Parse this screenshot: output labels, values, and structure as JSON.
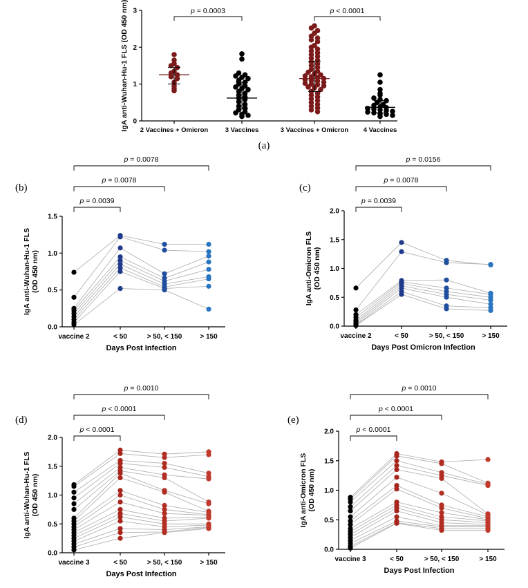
{
  "figure": {
    "panels": [
      "(a)",
      "(b)",
      "(c)",
      "(d)",
      "(e)"
    ]
  },
  "chart_data": [
    {
      "panel": "(a)",
      "type": "scatter",
      "ylabel": "IgA anti-Wuhan-Hu-1 FLS (OD 450 nm)",
      "ylim": [
        0,
        3
      ],
      "yticks": [
        0,
        1,
        2,
        3
      ],
      "categories": [
        "2 Vaccines + Omicron",
        "3 Vaccines",
        "3 Vaccines + Omicron",
        "4 Vaccines"
      ],
      "colors": [
        "#7a1a1a",
        "#000000",
        "#7a1a1a",
        "#000000"
      ],
      "medians": [
        1.25,
        0.62,
        1.15,
        0.37
      ],
      "iqr": [
        [
          1.0,
          1.45
        ],
        [
          0.32,
          1.05
        ],
        [
          0.8,
          1.62
        ],
        [
          0.22,
          0.55
        ]
      ],
      "values": [
        [
          1.8,
          1.65,
          1.55,
          1.5,
          1.45,
          1.35,
          1.3,
          1.25,
          1.2,
          1.15,
          1.05,
          0.95,
          0.88,
          0.82
        ],
        [
          1.82,
          1.68,
          1.3,
          1.25,
          1.22,
          1.18,
          1.15,
          1.1,
          1.05,
          1.0,
          0.95,
          0.92,
          0.88,
          0.85,
          0.8,
          0.75,
          0.7,
          0.65,
          0.62,
          0.58,
          0.52,
          0.45,
          0.4,
          0.35,
          0.3,
          0.25,
          0.22,
          0.18,
          0.15,
          0.12
        ],
        [
          2.58,
          2.52,
          2.45,
          2.38,
          2.3,
          2.25,
          2.2,
          2.15,
          2.05,
          2.0,
          1.95,
          1.9,
          1.85,
          1.8,
          1.75,
          1.7,
          1.65,
          1.6,
          1.55,
          1.5,
          1.45,
          1.4,
          1.35,
          1.32,
          1.28,
          1.25,
          1.22,
          1.2,
          1.18,
          1.15,
          1.12,
          1.1,
          1.08,
          1.05,
          1.02,
          1.0,
          0.98,
          0.95,
          0.92,
          0.9,
          0.85,
          0.8,
          0.75,
          0.7,
          0.65,
          0.6,
          0.55,
          0.5,
          0.45,
          0.4,
          0.35,
          0.3,
          0.25
        ],
        [
          1.25,
          1.05,
          0.85,
          0.75,
          0.7,
          0.62,
          0.58,
          0.55,
          0.5,
          0.45,
          0.42,
          0.38,
          0.36,
          0.34,
          0.32,
          0.3,
          0.28,
          0.26,
          0.24,
          0.22,
          0.2,
          0.18,
          0.15,
          0.12
        ]
      ],
      "comparisons": [
        {
          "from": 0,
          "to": 1,
          "p": "p = 0.0003"
        },
        {
          "from": 2,
          "to": 3,
          "p": "p < 0.0001"
        }
      ]
    },
    {
      "panel": "(b)",
      "type": "line",
      "ylabel": "IgA anti-Wuhan-Hu-1 FLS (OD 450 nm)",
      "xlabel": "Days Post Infection",
      "categories": [
        "vaccine 2",
        "< 50",
        "> 50, < 150",
        "> 150"
      ],
      "ylim": [
        0,
        1.5
      ],
      "yticks": [
        "0.0",
        "0.5",
        "1.0",
        "1.5"
      ],
      "colors": [
        "#000000",
        "#1f3a8a",
        "#1f4f9e",
        "#2a75c0"
      ],
      "series": [
        {
          "values": [
            0.74,
            1.24,
            1.12,
            1.12
          ]
        },
        {
          "values": [
            0.4,
            1.22,
            1.04,
            1.02
          ]
        },
        {
          "values": [
            0.25,
            1.07,
            0.72,
            0.96
          ]
        },
        {
          "values": [
            0.22,
            0.95,
            0.66,
            0.88
          ]
        },
        {
          "values": [
            0.18,
            0.9,
            0.62,
            0.78
          ]
        },
        {
          "values": [
            0.14,
            0.85,
            0.58,
            0.68
          ]
        },
        {
          "values": [
            0.1,
            0.8,
            0.54,
            0.65
          ]
        },
        {
          "values": [
            0.06,
            0.75,
            0.52,
            0.55
          ]
        },
        {
          "values": [
            0.03,
            0.52,
            0.5,
            0.24
          ]
        }
      ],
      "comparisons": [
        {
          "from": 0,
          "to": 1,
          "p": "p = 0.0039"
        },
        {
          "from": 0,
          "to": 2,
          "p": "p = 0.0078"
        },
        {
          "from": 0,
          "to": 3,
          "p": "p = 0.0078"
        }
      ]
    },
    {
      "panel": "(c)",
      "type": "line",
      "ylabel": "IgA anti-Omicron FLS (OD 450 nm)",
      "xlabel": "Days Post Omicron Infection",
      "categories": [
        "vaccine 2",
        "< 50",
        "> 50, < 150",
        "> 150"
      ],
      "ylim": [
        0,
        2
      ],
      "yticks": [
        "0.0",
        "0.5",
        "1.0",
        "1.5",
        "2.0"
      ],
      "colors": [
        "#000000",
        "#1f3a8a",
        "#1f4f9e",
        "#2a75c0"
      ],
      "series": [
        {
          "values": [
            0.66,
            1.45,
            1.14,
            1.06
          ]
        },
        {
          "values": [
            0.28,
            1.29,
            1.1,
            1.07
          ]
        },
        {
          "values": [
            0.2,
            0.79,
            0.8,
            0.57
          ]
        },
        {
          "values": [
            0.15,
            0.77,
            0.66,
            0.55
          ]
        },
        {
          "values": [
            0.1,
            0.74,
            0.6,
            0.5
          ]
        },
        {
          "values": [
            0.07,
            0.7,
            0.55,
            0.45
          ]
        },
        {
          "values": [
            0.04,
            0.66,
            0.5,
            0.38
          ]
        },
        {
          "values": [
            0.02,
            0.6,
            0.35,
            0.32
          ]
        },
        {
          "values": [
            0.01,
            0.55,
            0.3,
            0.27
          ]
        }
      ],
      "comparisons": [
        {
          "from": 0,
          "to": 1,
          "p": "p = 0.0039"
        },
        {
          "from": 0,
          "to": 2,
          "p": "p = 0.0078"
        },
        {
          "from": 0,
          "to": 3,
          "p": "p = 0.0156"
        }
      ]
    },
    {
      "panel": "(d)",
      "type": "line",
      "ylabel": "IgA anti-Wuhan-Hu-1 FLS (OD 450 nm)",
      "xlabel": "Days Post Infection",
      "categories": [
        "vaccine 3",
        "< 50",
        "> 50, < 150",
        "> 150"
      ],
      "ylim": [
        0,
        2
      ],
      "yticks": [
        "0.0",
        "0.5",
        "1.0",
        "1.5",
        "2.0"
      ],
      "colors": [
        "#000000",
        "#a8251c",
        "#b22d22",
        "#c0392b"
      ],
      "series": [
        {
          "values": [
            1.18,
            1.78,
            1.71,
            1.75
          ]
        },
        {
          "values": [
            1.15,
            1.72,
            1.65,
            1.7
          ]
        },
        {
          "values": [
            1.05,
            1.6,
            1.55,
            1.38
          ]
        },
        {
          "values": [
            0.95,
            1.55,
            1.48,
            1.32
          ]
        },
        {
          "values": [
            0.85,
            1.48,
            1.35,
            1.28
          ]
        },
        {
          "values": [
            0.75,
            1.42,
            1.3,
            0.88
          ]
        },
        {
          "values": [
            0.6,
            1.38,
            1.08,
            0.85
          ]
        },
        {
          "values": [
            0.55,
            1.3,
            1.05,
            0.72
          ]
        },
        {
          "values": [
            0.5,
            1.08,
            0.82,
            0.7
          ]
        },
        {
          "values": [
            0.45,
            1.0,
            0.75,
            0.66
          ]
        },
        {
          "values": [
            0.4,
            0.88,
            0.68,
            0.65
          ]
        },
        {
          "values": [
            0.35,
            0.75,
            0.6,
            0.62
          ]
        },
        {
          "values": [
            0.3,
            0.68,
            0.55,
            0.6
          ]
        },
        {
          "values": [
            0.25,
            0.62,
            0.5,
            0.5
          ]
        },
        {
          "values": [
            0.2,
            0.55,
            0.45,
            0.48
          ]
        },
        {
          "values": [
            0.15,
            0.42,
            0.4,
            0.45
          ]
        },
        {
          "values": [
            0.1,
            0.35,
            0.36,
            0.44
          ]
        },
        {
          "values": [
            0.05,
            0.25,
            0.35,
            0.42
          ]
        }
      ],
      "comparisons": [
        {
          "from": 0,
          "to": 1,
          "p": "p < 0.0001"
        },
        {
          "from": 0,
          "to": 2,
          "p": "p < 0.0001"
        },
        {
          "from": 0,
          "to": 3,
          "p": "p = 0.0010"
        }
      ]
    },
    {
      "panel": "(e)",
      "type": "line",
      "ylabel": "IgA anti-Omicron FLS (OD 450 nm)",
      "xlabel": "Days Post Infection",
      "categories": [
        "vaccine 3",
        "< 50",
        "> 50, < 150",
        "> 150"
      ],
      "ylim": [
        0,
        2
      ],
      "yticks": [
        "0.0",
        "0.5",
        "1.0",
        "1.5",
        "2.0"
      ],
      "colors": [
        "#000000",
        "#a8251c",
        "#b22d22",
        "#c0392b"
      ],
      "series": [
        {
          "values": [
            0.88,
            1.62,
            1.48,
            1.52
          ]
        },
        {
          "values": [
            0.85,
            1.58,
            1.45,
            1.12
          ]
        },
        {
          "values": [
            0.8,
            1.5,
            1.3,
            1.1
          ]
        },
        {
          "values": [
            0.72,
            1.42,
            1.25,
            1.08
          ]
        },
        {
          "values": [
            0.65,
            1.35,
            1.2,
            0.6
          ]
        },
        {
          "values": [
            0.55,
            1.22,
            0.95,
            0.58
          ]
        },
        {
          "values": [
            0.48,
            1.08,
            0.75,
            0.55
          ]
        },
        {
          "values": [
            0.42,
            1.02,
            0.7,
            0.52
          ]
        },
        {
          "values": [
            0.35,
            0.8,
            0.62,
            0.5
          ]
        },
        {
          "values": [
            0.3,
            0.75,
            0.55,
            0.48
          ]
        },
        {
          "values": [
            0.25,
            0.7,
            0.5,
            0.45
          ]
        },
        {
          "values": [
            0.2,
            0.65,
            0.45,
            0.42
          ]
        },
        {
          "values": [
            0.15,
            0.55,
            0.4,
            0.4
          ]
        },
        {
          "values": [
            0.1,
            0.48,
            0.38,
            0.38
          ]
        },
        {
          "values": [
            0.05,
            0.45,
            0.35,
            0.35
          ]
        },
        {
          "values": [
            0.02,
            0.44,
            0.32,
            0.32
          ]
        }
      ],
      "comparisons": [
        {
          "from": 0,
          "to": 1,
          "p": "p < 0.0001"
        },
        {
          "from": 0,
          "to": 2,
          "p": "p < 0.0001"
        },
        {
          "from": 0,
          "to": 3,
          "p": "p = 0.0010"
        }
      ]
    }
  ]
}
